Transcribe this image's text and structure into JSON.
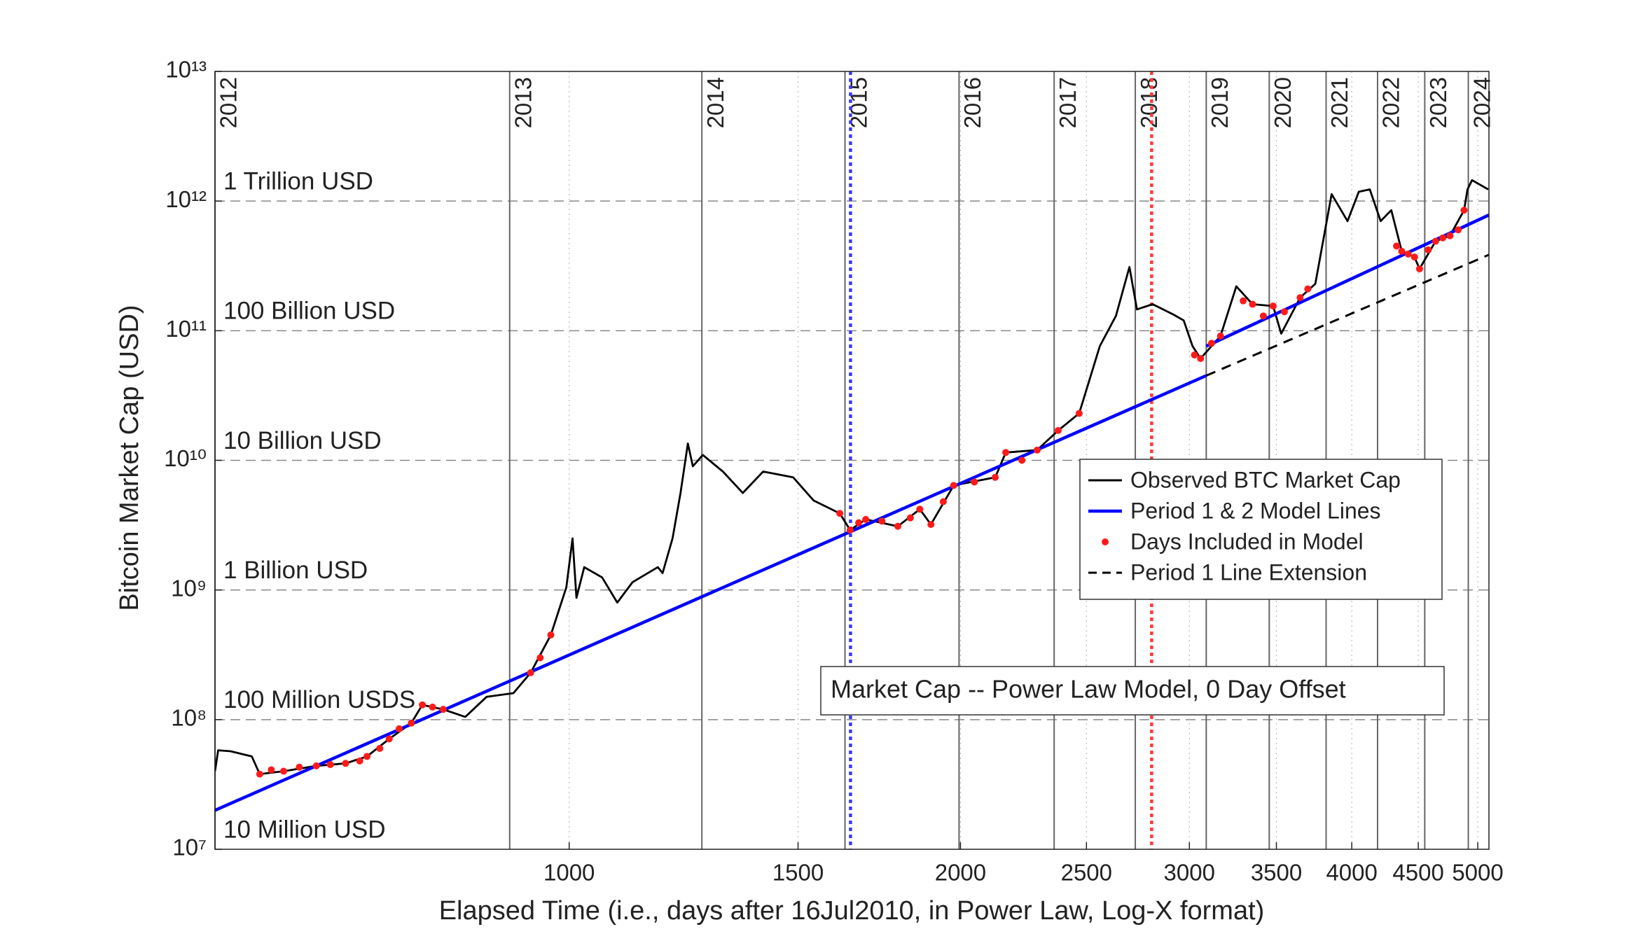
{
  "chart_data": {
    "type": "line",
    "xlabel": "Elapsed Time (i.e., days after 16Jul2010, in Power Law, Log-X format)",
    "ylabel": "Bitcoin Market Cap (USD)",
    "annotation": "Market Cap -- Power Law Model, 0 Day Offset",
    "xscale": "log",
    "yscale": "log",
    "xlim": [
      534,
      5100
    ],
    "ylim": [
      10000000,
      10000000000000
    ],
    "xticks": [
      1000,
      1500,
      2000,
      2500,
      3000,
      3500,
      4000,
      4500,
      5000
    ],
    "yticks": [
      {
        "value": 10000000,
        "label": "10⁷"
      },
      {
        "value": 100000000,
        "label": "10⁸"
      },
      {
        "value": 1000000000,
        "label": "10⁹"
      },
      {
        "value": 10000000000,
        "label": "10¹⁰"
      },
      {
        "value": 100000000000,
        "label": "10¹¹"
      },
      {
        "value": 1000000000000,
        "label": "10¹²"
      },
      {
        "value": 10000000000000,
        "label": "10¹³"
      }
    ],
    "grid": true,
    "legend": "center-right",
    "level_labels": [
      {
        "value": 1000000000000,
        "label": "1 Trillion USD"
      },
      {
        "value": 100000000000,
        "label": "100 Billion USD"
      },
      {
        "value": 10000000000,
        "label": "10 Billion USD"
      },
      {
        "value": 1000000000,
        "label": "1 Billion USD"
      },
      {
        "value": 100000000,
        "label": "100 Million USDS"
      },
      {
        "value": 10000000,
        "label": "10 Million USD"
      }
    ],
    "year_lines": {
      "labels": [
        "2012",
        "2013",
        "2014",
        "2015",
        "2016",
        "2017",
        "2018",
        "2019",
        "2020",
        "2021",
        "2022",
        "2023",
        "2024"
      ],
      "x": [
        534,
        900,
        1265,
        1630,
        1995,
        2361,
        2726,
        3091,
        3456,
        3822,
        4187,
        4552,
        4917
      ],
      "color": "#666666"
    },
    "markers": [
      {
        "x": 1646,
        "color": "#3a3aff"
      },
      {
        "x": 2806,
        "color": "#ff3a3a"
      }
    ],
    "series": [
      {
        "name": "Observed BTC Market Cap",
        "color": "#000000",
        "style": "solid",
        "x": [
          534,
          537,
          549,
          570,
          578,
          603,
          639,
          673,
          699,
          727,
          756,
          771,
          800,
          832,
          864,
          906,
          934,
          968,
          995,
          1006,
          1013,
          1027,
          1060,
          1089,
          1119,
          1170,
          1180,
          1201,
          1218,
          1234,
          1245,
          1267,
          1313,
          1360,
          1410,
          1487,
          1542,
          1615,
          1645,
          1691,
          1790,
          1861,
          1898,
          1976,
          2127,
          2167,
          2291,
          2378,
          2468,
          2560,
          2634,
          2698,
          2734,
          2811,
          2917,
          2970,
          3017,
          3060,
          3170,
          3260,
          3355,
          3480,
          3530,
          3650,
          3750,
          3860,
          3970,
          4050,
          4130,
          4210,
          4290,
          4370,
          4470,
          4510,
          4640,
          4760,
          4880,
          4910,
          4950,
          5093
        ],
        "values": [
          40000000,
          58000000,
          57000000,
          52000000,
          38000000,
          40000000,
          44000000,
          46000000,
          52000000,
          71000000,
          94000000,
          130000000,
          120000000,
          105000000,
          150000000,
          160000000,
          230000000,
          450000000,
          1050000000,
          2500000000,
          870000000,
          1500000000,
          1250000000,
          800000000,
          1150000000,
          1500000000,
          1350000000,
          2500000000,
          5600000000,
          13500000000,
          9000000000,
          11000000000,
          8200000000,
          5600000000,
          8200000000,
          7400000000,
          4900000000,
          3900000000,
          2900000000,
          3500000000,
          3100000000,
          4200000000,
          3200000000,
          6400000000,
          7400000000,
          11500000000,
          12000000000,
          17000000000,
          23000000000,
          76000000000,
          130000000000,
          310000000000,
          146000000000,
          160000000000,
          133000000000,
          120000000000,
          76000000000,
          61000000000,
          91000000000,
          220000000000,
          160000000000,
          155000000000,
          95000000000,
          180000000000,
          230000000000,
          1130000000000,
          700000000000,
          1180000000000,
          1230000000000,
          700000000000,
          850000000000,
          410000000000,
          370000000000,
          300000000000,
          490000000000,
          540000000000,
          850000000000,
          1230000000000,
          1450000000000,
          1230000000000
        ]
      },
      {
        "name": "Period 1 & 2 Model Lines",
        "color": "#0000ff",
        "style": "solid",
        "x": [
          534,
          3091,
          3091,
          3091,
          5100
        ],
        "values": [
          20000000,
          45000000000,
          null,
          76000000000,
          780000000000
        ]
      },
      {
        "name": "Days Included in Model",
        "color": "#ff1a1a",
        "style": "dots",
        "x": [
          578,
          590,
          603,
          620,
          639,
          655,
          673,
          690,
          699,
          715,
          727,
          740,
          756,
          771,
          785,
          800,
          934,
          950,
          968,
          1615,
          1645,
          1670,
          1691,
          1740,
          1790,
          1830,
          1861,
          1898,
          1940,
          1976,
          2050,
          2127,
          2167,
          2230,
          2291,
          2378,
          2468,
          3027,
          3060,
          3120,
          3170,
          3300,
          3355,
          3420,
          3480,
          3550,
          3650,
          3700,
          4330,
          4370,
          4420,
          4470,
          4510,
          4580,
          4640,
          4700,
          4760,
          4830,
          4880
        ],
        "values": [
          38000000,
          41000000,
          40000000,
          43000000,
          44000000,
          45000000,
          46000000,
          48000000,
          52000000,
          60000000,
          71000000,
          85000000,
          94000000,
          130000000,
          125000000,
          120000000,
          230000000,
          300000000,
          450000000,
          3900000000,
          2900000000,
          3300000000,
          3500000000,
          3400000000,
          3100000000,
          3600000000,
          4200000000,
          3200000000,
          4800000000,
          6400000000,
          6800000000,
          7400000000,
          11500000000,
          10000000000,
          12000000000,
          17000000000,
          23000000000,
          65000000000,
          61000000000,
          80000000000,
          91000000000,
          170000000000,
          160000000000,
          130000000000,
          155000000000,
          140000000000,
          180000000000,
          210000000000,
          450000000000,
          410000000000,
          390000000000,
          370000000000,
          300000000000,
          420000000000,
          490000000000,
          520000000000,
          540000000000,
          600000000000,
          850000000000
        ]
      },
      {
        "name": "Period 1 Line Extension",
        "color": "#000000",
        "style": "dashed",
        "x": [
          3091,
          5100
        ],
        "values": [
          45000000000,
          385000000000
        ]
      }
    ]
  }
}
